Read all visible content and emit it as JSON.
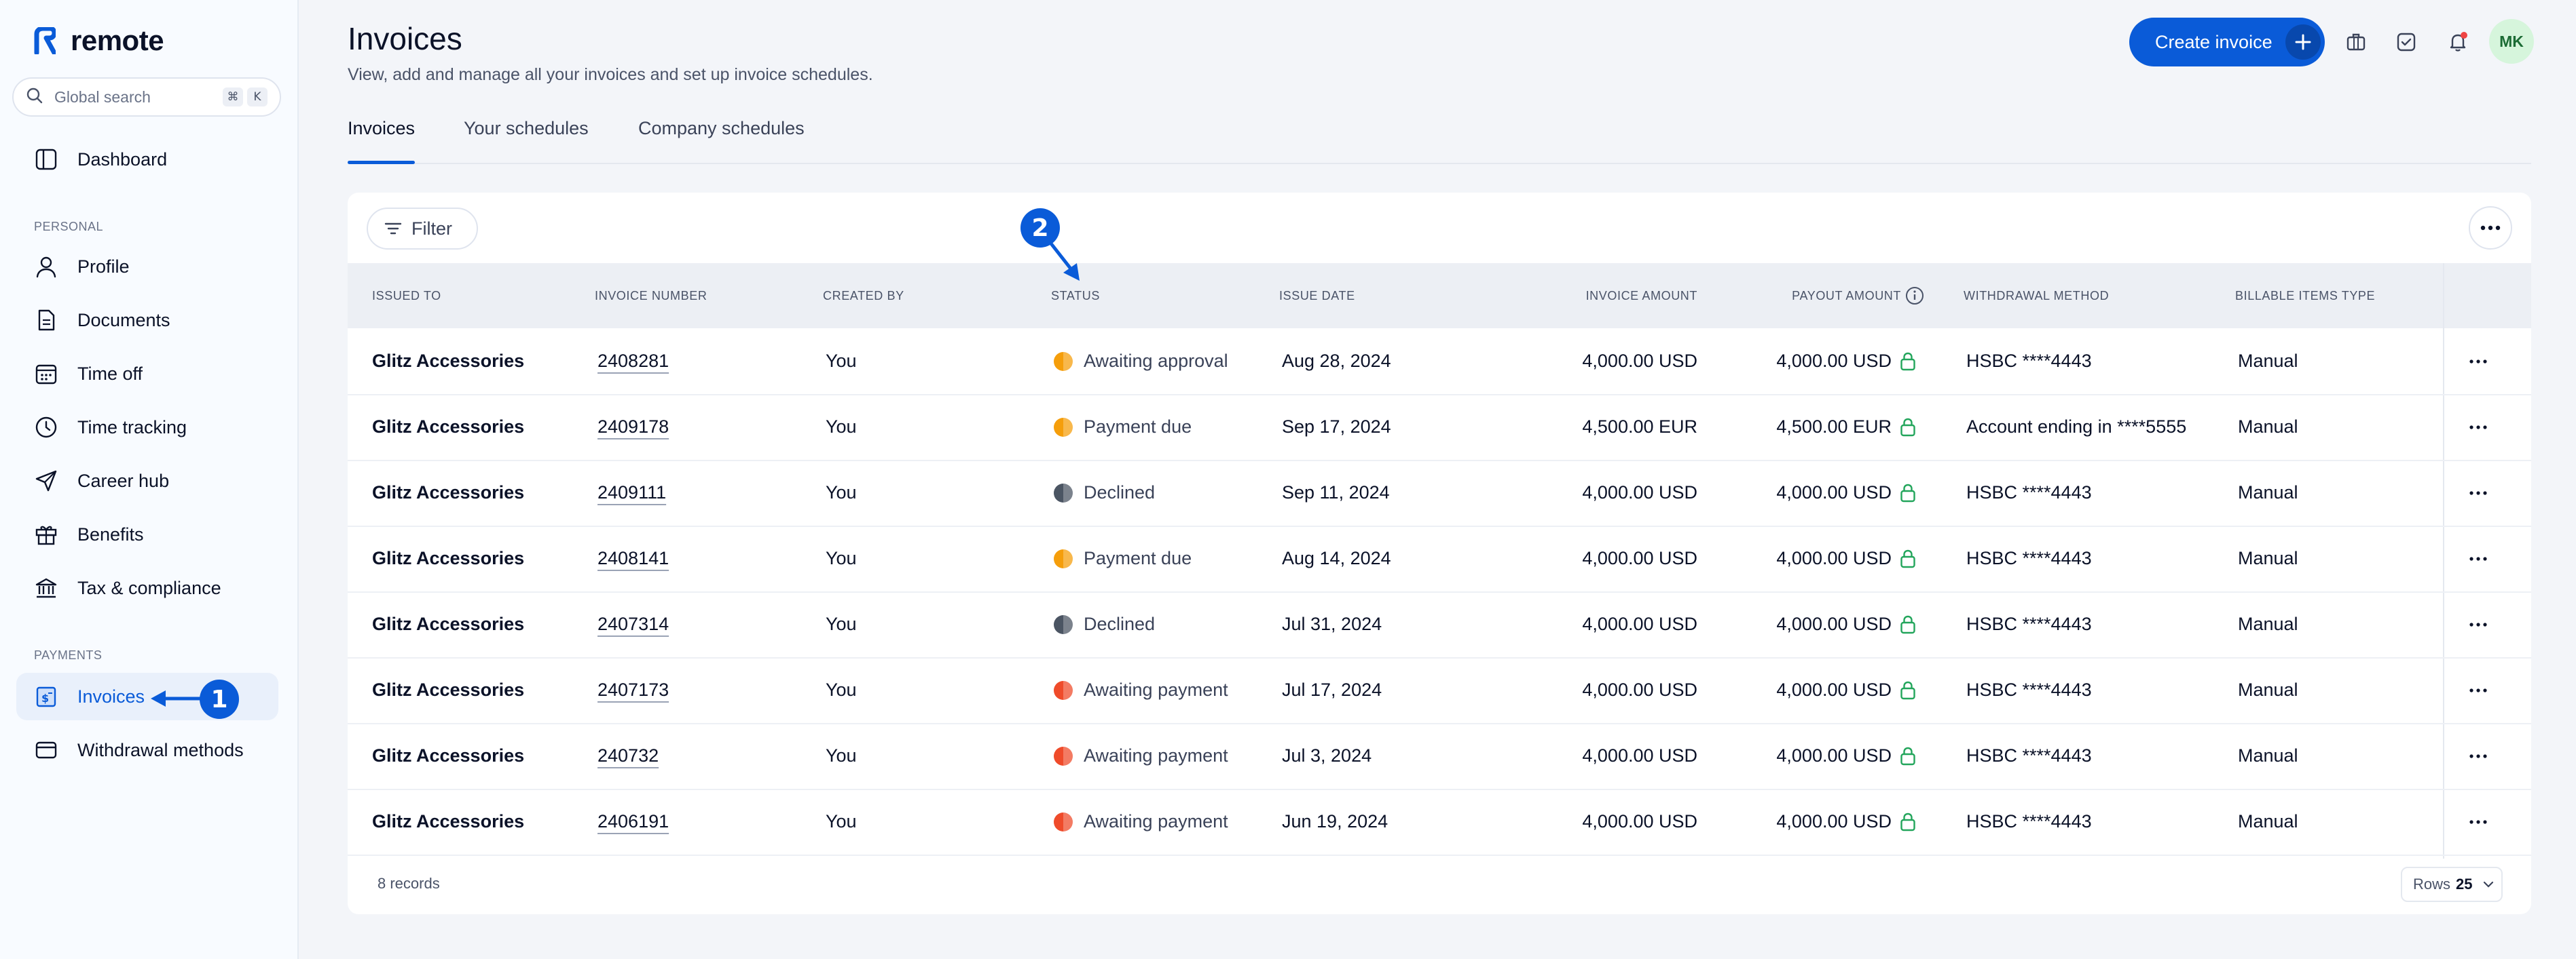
{
  "app": {
    "brand": "remote"
  },
  "search": {
    "placeholder": "Global search",
    "shortcut_1": "⌘",
    "shortcut_2": "K"
  },
  "sidebar": {
    "dashboard": "Dashboard",
    "personal_label": "PERSONAL",
    "personal_items": [
      {
        "label": "Profile",
        "icon": "user-icon"
      },
      {
        "label": "Documents",
        "icon": "document-icon"
      },
      {
        "label": "Time off",
        "icon": "calendar-icon"
      },
      {
        "label": "Time tracking",
        "icon": "clock-icon"
      },
      {
        "label": "Career hub",
        "icon": "send-icon"
      },
      {
        "label": "Benefits",
        "icon": "gift-icon"
      },
      {
        "label": "Tax & compliance",
        "icon": "bank-icon"
      }
    ],
    "payments_label": "PAYMENTS",
    "payments_items": [
      {
        "label": "Invoices",
        "icon": "invoice-icon",
        "active": true
      },
      {
        "label": "Withdrawal methods",
        "icon": "card-icon"
      }
    ]
  },
  "header": {
    "title": "Invoices",
    "subtitle": "View, add and manage all your invoices and set up invoice schedules.",
    "create_button": "Create invoice",
    "avatar_initials": "MK"
  },
  "tabs": [
    "Invoices",
    "Your schedules",
    "Company schedules"
  ],
  "toolbar": {
    "filter_label": "Filter"
  },
  "table": {
    "columns": [
      "ISSUED TO",
      "INVOICE NUMBER",
      "CREATED BY",
      "STATUS",
      "ISSUE DATE",
      "INVOICE AMOUNT",
      "PAYOUT AMOUNT",
      "WITHDRAWAL METHOD",
      "BILLABLE ITEMS TYPE"
    ],
    "rows": [
      {
        "issued_to": "Glitz Accessories",
        "number": "2408281",
        "created_by": "You",
        "status": "Awaiting approval",
        "status_color": "#f59e0b",
        "issue_date": "Aug 28, 2024",
        "invoice_amount": "4,000.00 USD",
        "payout_amount": "4,000.00 USD",
        "withdrawal": "HSBC ****4443",
        "billable": "Manual"
      },
      {
        "issued_to": "Glitz Accessories",
        "number": "2409178",
        "created_by": "You",
        "status": "Payment due",
        "status_color": "#f59e0b",
        "issue_date": "Sep 17, 2024",
        "invoice_amount": "4,500.00 EUR",
        "payout_amount": "4,500.00 EUR",
        "withdrawal": "Account ending in ****5555",
        "billable": "Manual"
      },
      {
        "issued_to": "Glitz Accessories",
        "number": "2409111",
        "created_by": "You",
        "status": "Declined",
        "status_color": "#4b5563",
        "issue_date": "Sep 11, 2024",
        "invoice_amount": "4,000.00 USD",
        "payout_amount": "4,000.00 USD",
        "withdrawal": "HSBC ****4443",
        "billable": "Manual"
      },
      {
        "issued_to": "Glitz Accessories",
        "number": "2408141",
        "created_by": "You",
        "status": "Payment due",
        "status_color": "#f59e0b",
        "issue_date": "Aug 14, 2024",
        "invoice_amount": "4,000.00 USD",
        "payout_amount": "4,000.00 USD",
        "withdrawal": "HSBC ****4443",
        "billable": "Manual"
      },
      {
        "issued_to": "Glitz Accessories",
        "number": "2407314",
        "created_by": "You",
        "status": "Declined",
        "status_color": "#4b5563",
        "issue_date": "Jul 31, 2024",
        "invoice_amount": "4,000.00 USD",
        "payout_amount": "4,000.00 USD",
        "withdrawal": "HSBC ****4443",
        "billable": "Manual"
      },
      {
        "issued_to": "Glitz Accessories",
        "number": "2407173",
        "created_by": "You",
        "status": "Awaiting payment",
        "status_color": "#ef4b2a",
        "issue_date": "Jul 17, 2024",
        "invoice_amount": "4,000.00 USD",
        "payout_amount": "4,000.00 USD",
        "withdrawal": "HSBC ****4443",
        "billable": "Manual"
      },
      {
        "issued_to": "Glitz Accessories",
        "number": "240732",
        "created_by": "You",
        "status": "Awaiting payment",
        "status_color": "#ef4b2a",
        "issue_date": "Jul 3, 2024",
        "invoice_amount": "4,000.00 USD",
        "payout_amount": "4,000.00 USD",
        "withdrawal": "HSBC ****4443",
        "billable": "Manual"
      },
      {
        "issued_to": "Glitz Accessories",
        "number": "2406191",
        "created_by": "You",
        "status": "Awaiting payment",
        "status_color": "#ef4b2a",
        "issue_date": "Jun 19, 2024",
        "invoice_amount": "4,000.00 USD",
        "payout_amount": "4,000.00 USD",
        "withdrawal": "HSBC ****4443",
        "billable": "Manual"
      }
    ]
  },
  "footer": {
    "records": "8 records",
    "rows_label": "Rows",
    "rows_value": "25"
  },
  "annotations": {
    "badge_1": "1",
    "badge_2": "2"
  },
  "colors": {
    "accent": "#0a5bd8",
    "lock": "#22a55b"
  }
}
